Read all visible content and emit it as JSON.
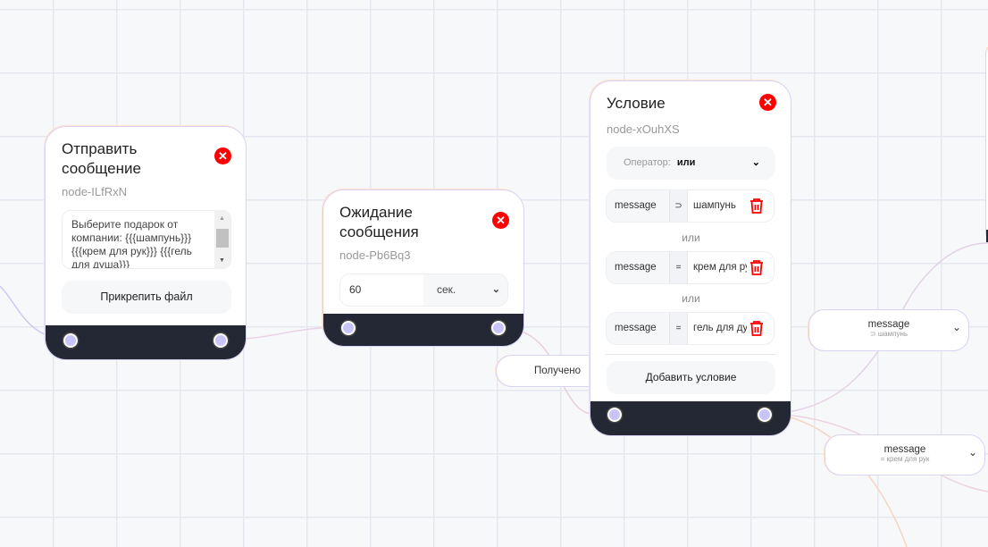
{
  "nodes": {
    "send": {
      "title": "Отправить сообщение",
      "id": "node-ILfRxN",
      "text": "Выберите подарок от компании: {{{шампунь}}} {{{крем для рук}}} {{{гель для душа}}}",
      "attach": "Прикрепить файл"
    },
    "wait": {
      "title": "Ожидание сообщения",
      "id": "node-Pb6Bq3",
      "value": "60",
      "unit": "сек."
    },
    "cond": {
      "title": "Условие",
      "id": "node-xOuhXS",
      "operator_label": "Оператор:",
      "operator": "или",
      "rows": [
        {
          "field": "message",
          "op": "⊃",
          "value": "шампунь"
        },
        {
          "field": "message",
          "op": "=",
          "value": "крем для рук"
        },
        {
          "field": "message",
          "op": "=",
          "value": "гель для душа"
        }
      ],
      "joiner": "или",
      "add": "Добавить условие"
    }
  },
  "edge_labels": {
    "received": "Получено",
    "branch1": {
      "title": "message",
      "sub": "⊃ шампунь"
    },
    "branch2": {
      "title": "message",
      "sub": "= крем для рук"
    }
  },
  "colors": {
    "close": "#ff0000",
    "footer": "#232834",
    "port": "#c7c4f7",
    "edge_lavender": "#cfc8f5",
    "edge_orange": "#f6cfb4"
  }
}
